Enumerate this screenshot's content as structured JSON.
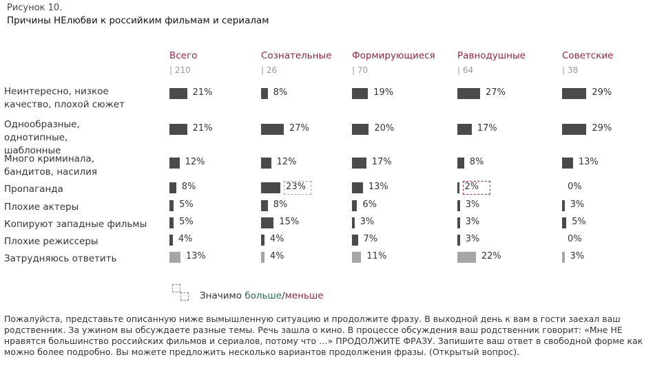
{
  "figure": {
    "number": "Рисунок 10.",
    "title": "Причины НЕлюбви к российким фильмам и сериалам"
  },
  "chart_data": {
    "type": "bar",
    "title": "Причины НЕлюбви к российким фильмам и сериалам",
    "value_unit": "%",
    "groups": [
      {
        "name": "Всего",
        "n": "| 210"
      },
      {
        "name": "Сознательные",
        "n": "| 26"
      },
      {
        "name": "Формирующиеся",
        "n": "| 70"
      },
      {
        "name": "Равнодушные",
        "n": "| 64"
      },
      {
        "name": "Советские",
        "n": "| 38"
      }
    ],
    "categories": [
      "Неинтересно, низкое качество, плохой сюжет",
      "Однообразные, однотипные, шаблонные",
      "Много криминала, бандитов, насилия",
      "Пропаганда",
      "Плохие актеры",
      "Копируют западные фильмы",
      "Плохие режиссеры",
      "Затрудняюсь ответить"
    ],
    "series": [
      {
        "values": [
          21,
          21,
          12,
          8,
          5,
          5,
          4,
          13
        ]
      },
      {
        "values": [
          8,
          27,
          12,
          23,
          8,
          15,
          4,
          4
        ]
      },
      {
        "values": [
          19,
          20,
          17,
          13,
          6,
          3,
          7,
          11
        ]
      },
      {
        "values": [
          27,
          17,
          8,
          2,
          3,
          3,
          3,
          22
        ]
      },
      {
        "values": [
          29,
          29,
          13,
          0,
          3,
          5,
          0,
          3
        ]
      }
    ],
    "value_labels": [
      [
        "21%",
        "21%",
        "12%",
        "8%",
        "5%",
        "5%",
        "4%",
        "13%"
      ],
      [
        "8%",
        "27%",
        "12%",
        "23%",
        "8%",
        "15%",
        "4%",
        "4%"
      ],
      [
        "19%",
        "20%",
        "17%",
        "13%",
        "6%",
        "3%",
        "7%",
        "11%"
      ],
      [
        "27%",
        "17%",
        "8%",
        "2%",
        "3%",
        "3%",
        "3%",
        "22%"
      ],
      [
        "29%",
        "29%",
        "13%",
        "0%",
        "3%",
        "5%",
        "0%",
        "3%"
      ]
    ],
    "significance": [
      {
        "group": 1,
        "category": 3,
        "direction": "more"
      },
      {
        "group": 3,
        "category": 3,
        "direction": "less"
      }
    ],
    "colors": {
      "bar": "#4a4a4a",
      "bar_dont_know": "#a6a6a6",
      "header": "#8b2645",
      "more": "#2e6b4b",
      "less": "#8b2645"
    }
  },
  "legend": {
    "prefix": "Значимо ",
    "more": "больше",
    "sep": "/",
    "less": "меньше"
  },
  "note": "Пожалуйста, представьте описанную ниже вымышленную ситуацию и продолжите фразу. В выходной день к вам в гости заехал ваш родственник. За ужином вы обсуждаете разные темы. Речь зашла о кино. В процессе обсуждения ваш родственник говорит: «Мне НЕ нравятся большинство российских фильмов и сериалов, потому что …» ПРОДОЛЖИТЕ ФРАЗУ. Запишите ваш ответ в свободной форме как можно более подробно. Вы можете предложить несколько вариантов продолжения фразы. (Открытый вопрос)."
}
